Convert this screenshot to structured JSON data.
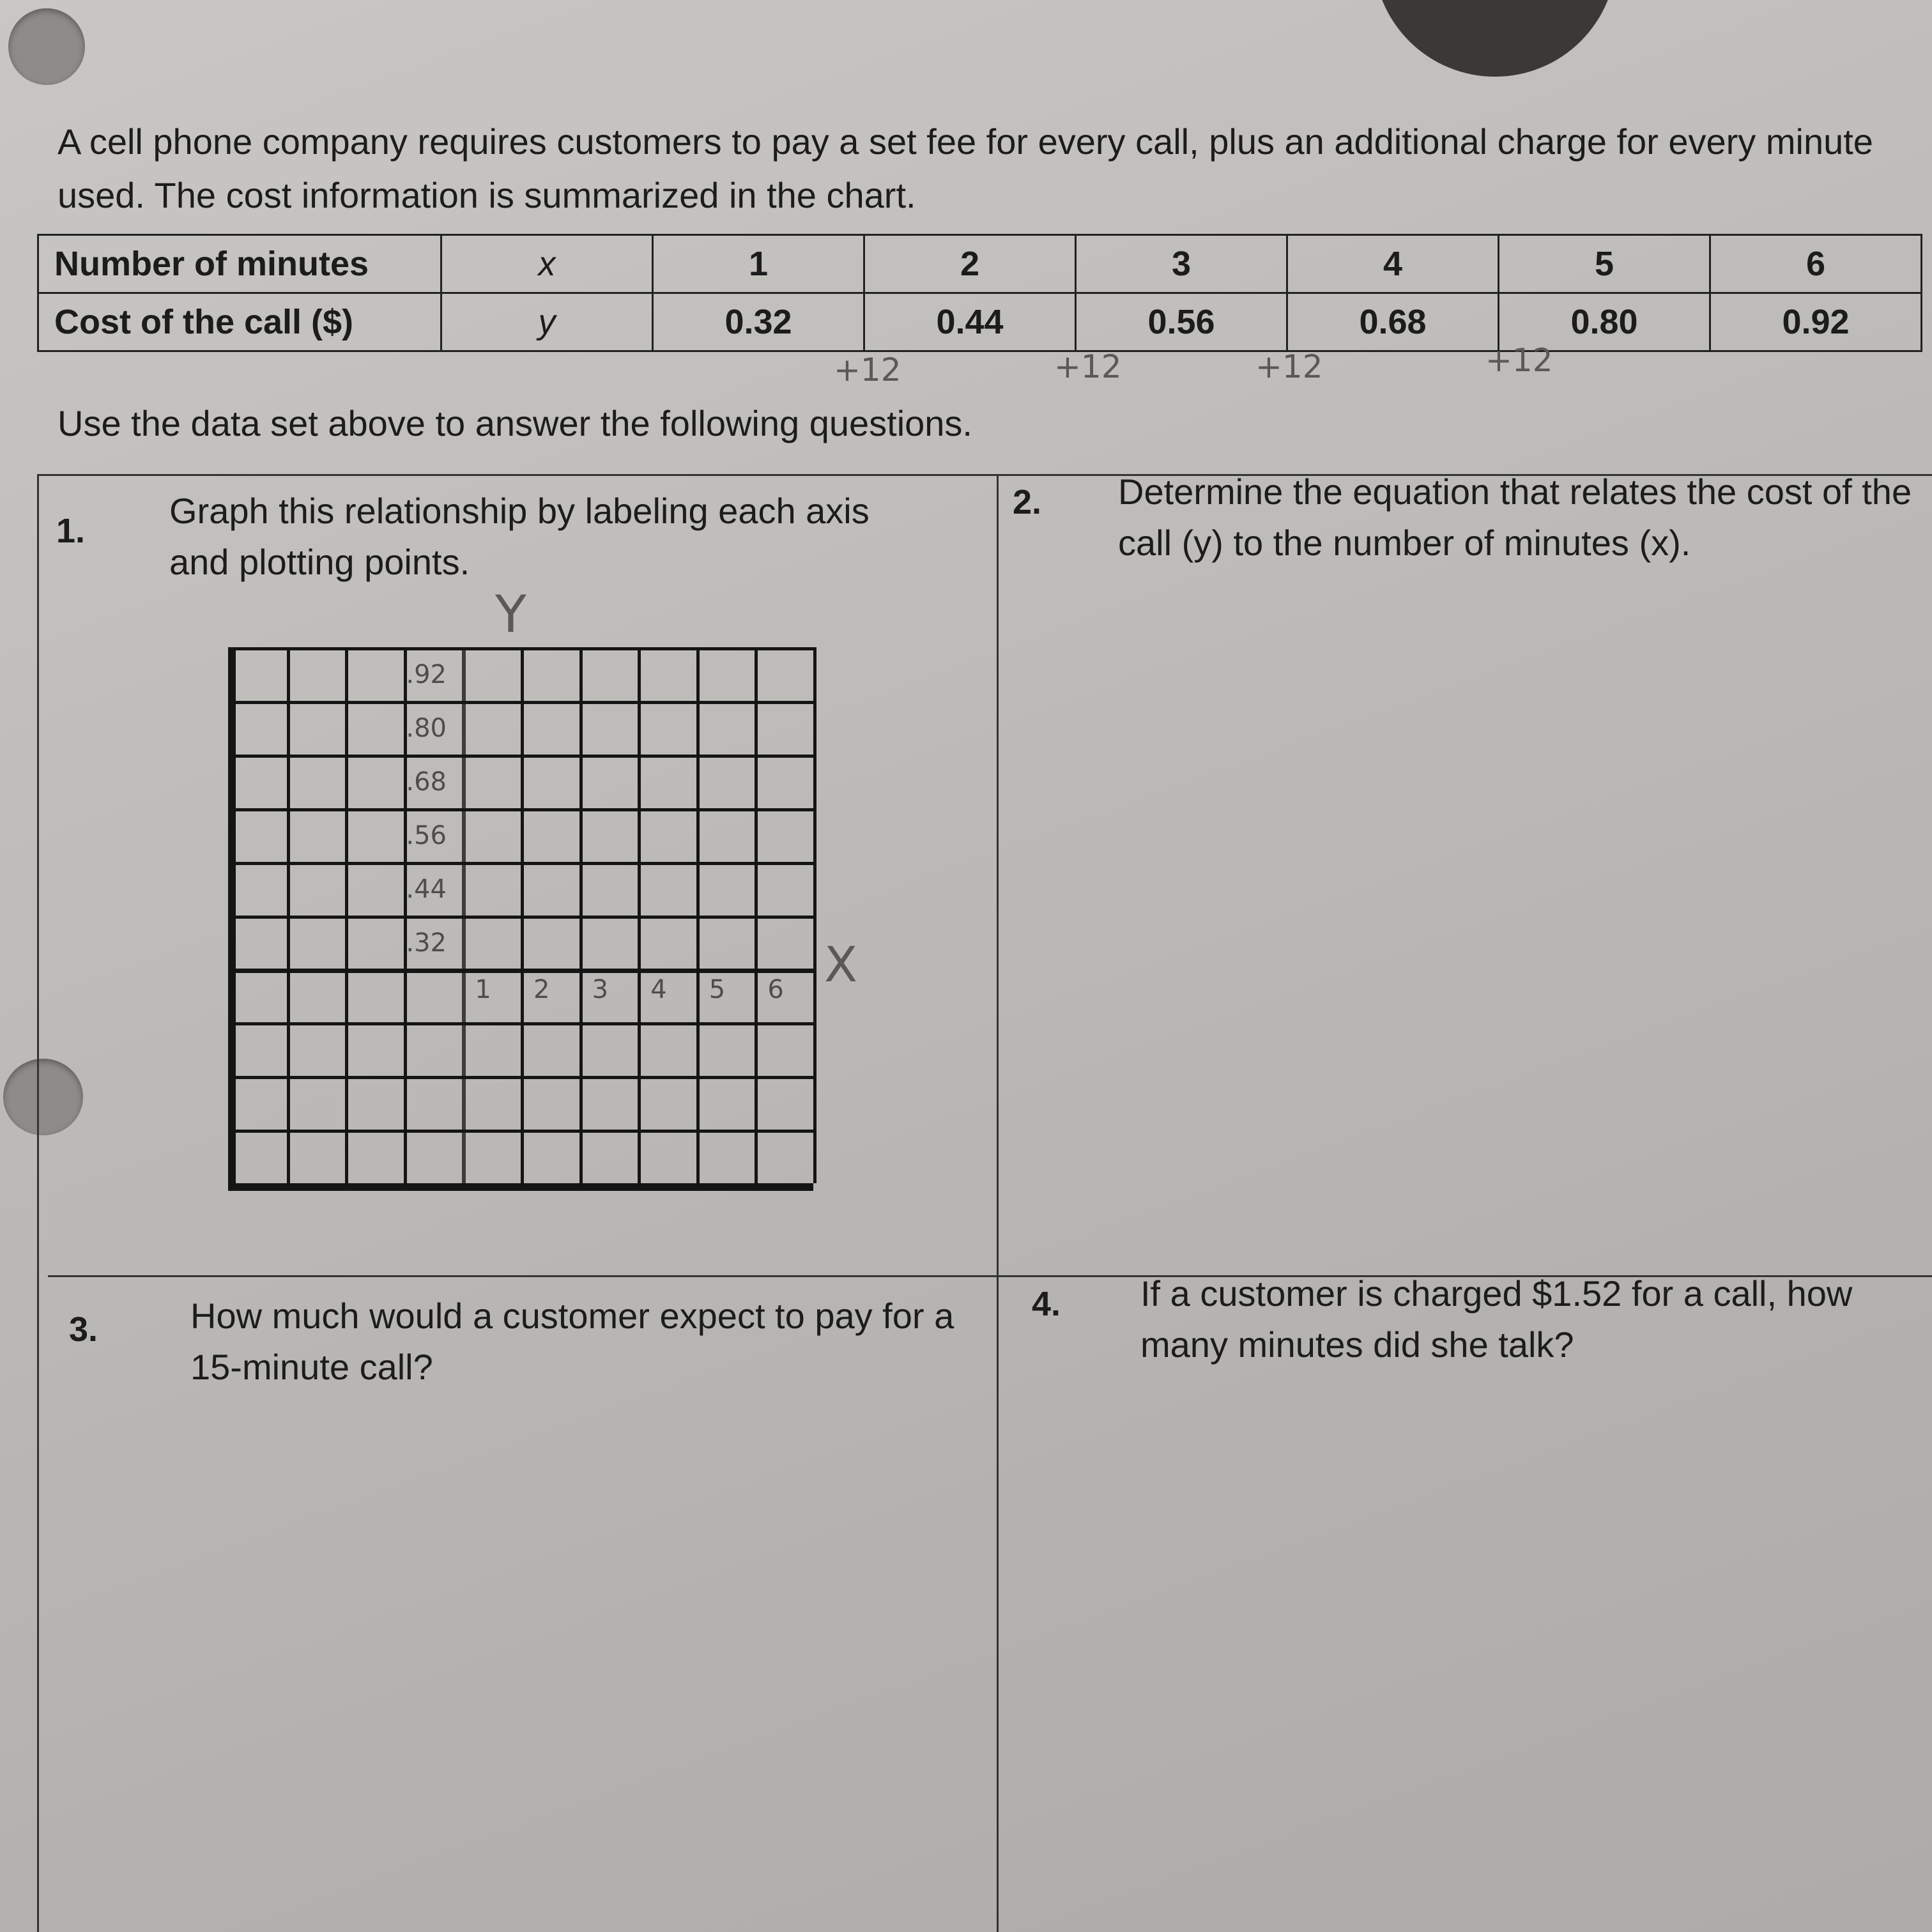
{
  "intro": "A cell phone company requires customers to pay a set fee for every call, plus an additional charge for every minute used. The cost information is summarized in the chart.",
  "table": {
    "rows": [
      {
        "label": "Number of minutes",
        "var": "x",
        "values": [
          "1",
          "2",
          "3",
          "4",
          "5",
          "6"
        ]
      },
      {
        "label": "Cost of the call ($)",
        "var": "y",
        "values": [
          "0.32",
          "0.44",
          "0.56",
          "0.68",
          "0.80",
          "0.92"
        ]
      }
    ],
    "annotations": [
      "+12",
      "+12",
      "+12",
      "+12"
    ]
  },
  "instruction": "Use the data set above to answer the following questions.",
  "questions": [
    {
      "num": "1.",
      "text": "Graph this relationship by labeling each axis and plotting points."
    },
    {
      "num": "2.",
      "text": "Determine the equation that relates the cost of the call (y) to the number of minutes (x)."
    },
    {
      "num": "3.",
      "text": "How much would a customer expect to pay for a 15-minute call?"
    },
    {
      "num": "4.",
      "text": "If a customer is charged $1.52 for a call, how many minutes did she talk?"
    }
  ],
  "graph": {
    "y_axis_label": "Y",
    "x_axis_label": "X",
    "y_ticks": [
      ".92",
      ".80",
      ".68",
      ".56",
      ".44",
      ".32"
    ],
    "x_ticks": [
      "1",
      "2",
      "3",
      "4",
      "5",
      "6"
    ]
  }
}
